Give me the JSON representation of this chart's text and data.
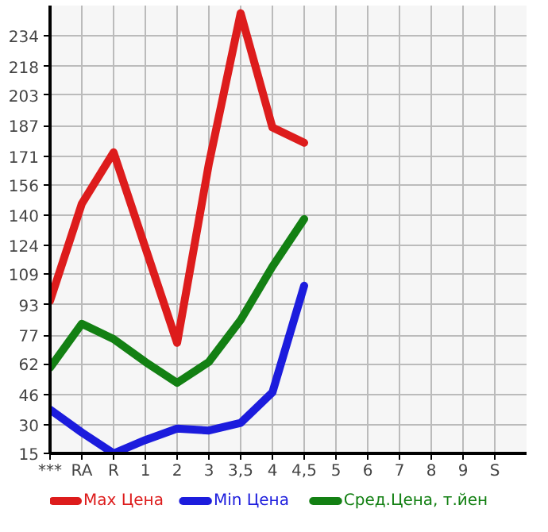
{
  "chart_data": {
    "type": "line",
    "categories": [
      "***",
      "RA",
      "R",
      "1",
      "2",
      "3",
      "3,5",
      "4",
      "4,5",
      "5",
      "6",
      "7",
      "8",
      "9",
      "S"
    ],
    "series": [
      {
        "name": "Max Цена",
        "color": "#dd1c1c",
        "values": [
          95,
          146,
          173,
          123,
          73,
          167,
          246,
          186,
          178,
          null,
          null,
          null,
          null,
          null,
          null
        ]
      },
      {
        "name": "Min Цена",
        "color": "#1c1cdd",
        "values": [
          38,
          26,
          15,
          22,
          28,
          27,
          31,
          47,
          103,
          null,
          null,
          null,
          null,
          null,
          null
        ]
      },
      {
        "name": "Сред.Цена, т.йен",
        "color": "#138013",
        "values": [
          60,
          83,
          75,
          63,
          52,
          63,
          85,
          113,
          138,
          null,
          null,
          null,
          null,
          null,
          null
        ]
      }
    ],
    "ylim": [
      15,
      250
    ],
    "yticks": [
      15,
      30,
      46,
      62,
      77,
      93,
      109,
      124,
      140,
      156,
      171,
      187,
      203,
      218,
      234
    ],
    "grid": true,
    "legend": "bottom",
    "line_style": "solid"
  }
}
